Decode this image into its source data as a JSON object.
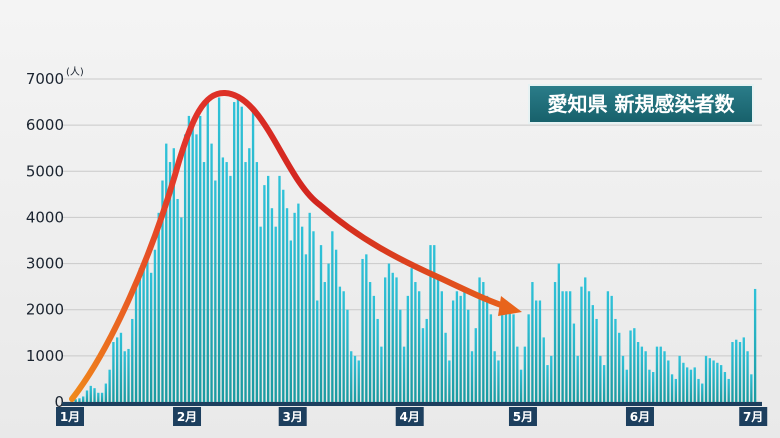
{
  "chart_data": {
    "type": "bar",
    "title": "愛知県 新規感染者数",
    "ylabel": "(人)",
    "ylim": [
      0,
      7000
    ],
    "yticks": [
      0,
      1000,
      2000,
      3000,
      4000,
      5000,
      6000,
      7000
    ],
    "xticks": [
      "1月",
      "2月",
      "3月",
      "4月",
      "5月",
      "6月",
      "7月"
    ],
    "grid": true,
    "series": [
      {
        "values": [
          50,
          60,
          80,
          120,
          250,
          350,
          300,
          200,
          200,
          400,
          700,
          1300,
          1400,
          1500,
          1100,
          1150,
          1800,
          2600,
          2900,
          3000,
          3100,
          2800,
          3300,
          4100,
          4800,
          5600,
          5200,
          5500,
          4400,
          4000,
          5800,
          6200,
          6100,
          5800,
          6200,
          5200,
          6500,
          5600,
          4800,
          6600,
          5300,
          5200,
          4900,
          6500,
          6600,
          6400,
          5200,
          5500,
          6300,
          5200,
          3800,
          4700,
          4900,
          4200,
          3800,
          4900,
          4600,
          4200,
          3500,
          4100,
          4300,
          3800,
          3200,
          4100,
          3700,
          2200,
          3400,
          2600,
          3000,
          3700,
          3300,
          2500,
          2400,
          2000,
          1100,
          1000,
          900,
          3100,
          3200,
          2600,
          2300,
          1800,
          1200,
          2700,
          3000,
          2800,
          2700,
          2000,
          1200,
          2300,
          2900,
          2600,
          2400,
          1600,
          1800,
          3400,
          3400,
          2700,
          2400,
          1500,
          900,
          2200,
          2400,
          2300,
          2400,
          2000,
          1100,
          1600,
          2700,
          2600,
          2300,
          1900,
          1100,
          900,
          2000,
          2200,
          2000,
          1900,
          1200,
          700,
          1200,
          1900,
          2600,
          2200,
          2200,
          1400,
          800,
          1000,
          2600,
          3000,
          2400,
          2400,
          2400,
          1700,
          1000,
          2500,
          2700,
          2400,
          2100,
          1800,
          1000,
          800,
          2400,
          2300,
          1800,
          1500,
          1000,
          700,
          1550,
          1600,
          1300,
          1200,
          1100,
          700,
          650,
          1200,
          1200,
          1100,
          900,
          600,
          500,
          1000,
          850,
          750,
          700,
          750,
          500,
          400,
          1000,
          950,
          900,
          850,
          800,
          650,
          500,
          1300,
          1350,
          1300,
          1400,
          1100,
          600,
          2450
        ]
      }
    ]
  }
}
